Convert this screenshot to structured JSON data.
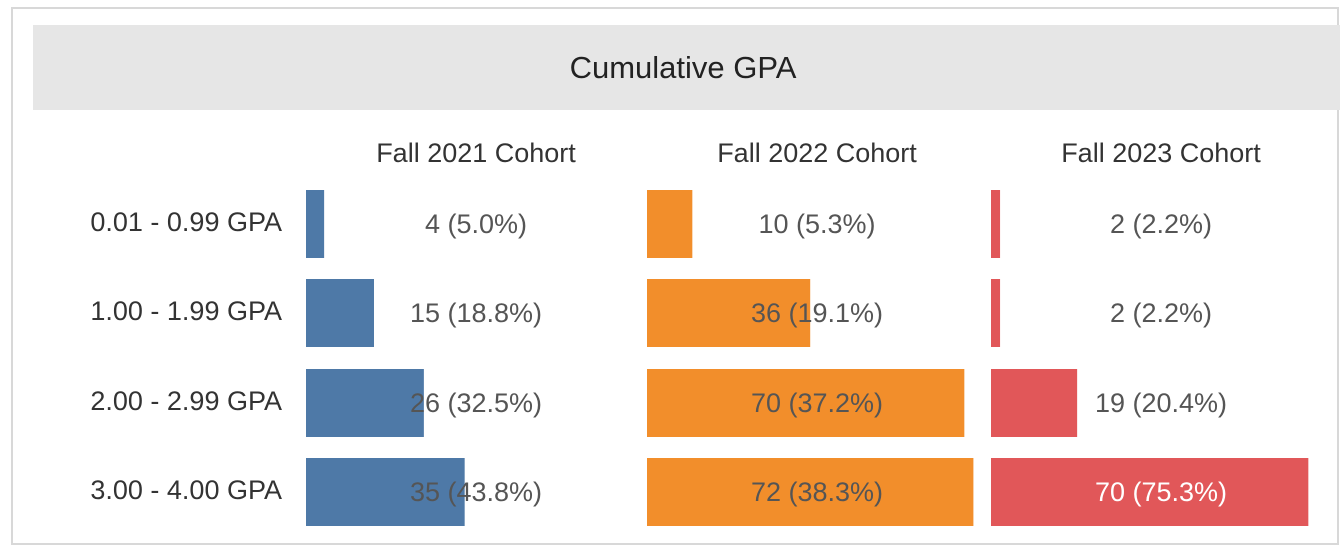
{
  "chart_data": {
    "type": "bar",
    "orientation": "horizontal",
    "title": "Cumulative GPA",
    "categories": [
      "0.01 - 0.99 GPA",
      "1.00 - 1.99 GPA",
      "2.00 - 2.99 GPA",
      "3.00 - 4.00 GPA"
    ],
    "xlim": [
      0,
      75
    ],
    "series": [
      {
        "name": "Fall 2021 Cohort",
        "color": "#4e79a7",
        "values": [
          4,
          15,
          26,
          35
        ],
        "value_labels": [
          "4 (5.0%)",
          "15 (18.8%)",
          "26 (32.5%)",
          "35 (43.8%)"
        ]
      },
      {
        "name": "Fall 2022 Cohort",
        "color": "#f28e2b",
        "values": [
          10,
          36,
          70,
          72
        ],
        "value_labels": [
          "10 (5.3%)",
          "36 (19.1%)",
          "70 (37.2%)",
          "72 (38.3%)"
        ]
      },
      {
        "name": "Fall 2023 Cohort",
        "color": "#e15759",
        "values": [
          2,
          2,
          19,
          70
        ],
        "value_labels": [
          "2 (2.2%)",
          "2 (2.2%)",
          "19 (20.4%)",
          "70 (75.3%)"
        ]
      }
    ]
  }
}
